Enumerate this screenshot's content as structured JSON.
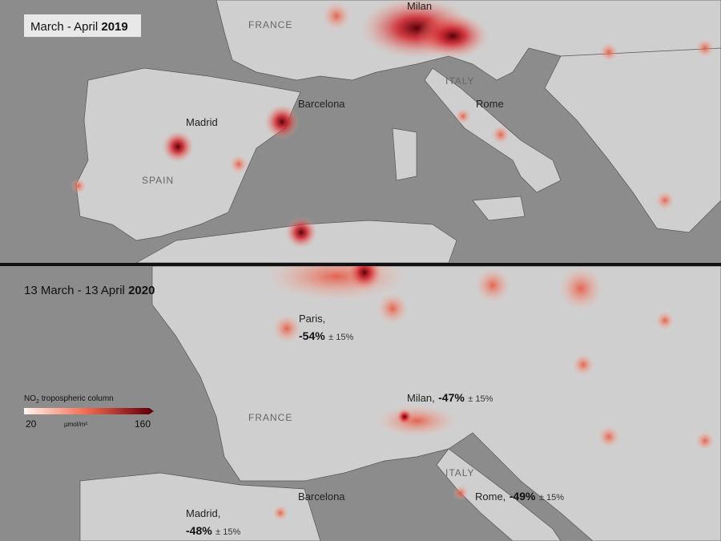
{
  "top_panel": {
    "title": {
      "period": "March - April",
      "year": "2019"
    },
    "labels": {
      "france": "FRANCE",
      "milan": "Milan",
      "italy": "ITALY",
      "rome": "Rome",
      "barcelona": "Barcelona",
      "madrid": "Madrid",
      "spain": "SPAIN"
    }
  },
  "bottom_panel": {
    "title": {
      "period": "13 March - 13 April",
      "year": "2020"
    },
    "labels": {
      "france": "FRANCE",
      "italy": "ITALY",
      "barcelona": "Barcelona"
    },
    "cities": [
      {
        "name": "Paris,",
        "change": "-54%",
        "error": "± 15%"
      },
      {
        "name": "Milan,",
        "change": "-47%",
        "error": "± 15%"
      },
      {
        "name": "Rome,",
        "change": "-49%",
        "error": "± 15%"
      },
      {
        "name": "Madrid,",
        "change": "-48%",
        "error": "± 15%"
      }
    ],
    "legend": {
      "title": "NO",
      "subscript": "2",
      "title_rest": "tropospheric column",
      "min": "20",
      "unit": "µmol/m²",
      "max": "160"
    }
  }
}
